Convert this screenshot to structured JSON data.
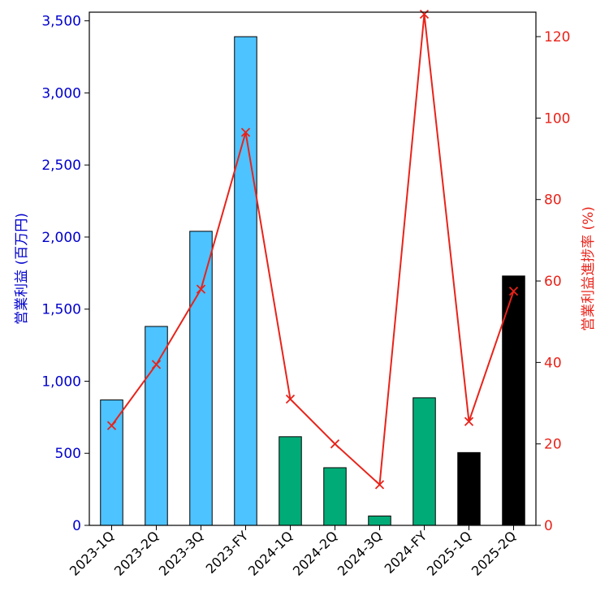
{
  "chart_data": {
    "type": "bar",
    "categories": [
      "2023-1Q",
      "2023-2Q",
      "2023-3Q",
      "2023-FY",
      "2024-1Q",
      "2024-2Q",
      "2024-3Q",
      "2024-FY",
      "2025-1Q",
      "2025-2Q"
    ],
    "series": [
      {
        "axis": "left",
        "kind": "bar",
        "values": [
          870,
          1380,
          2040,
          3390,
          615,
          400,
          65,
          885,
          505,
          1730
        ],
        "colors": [
          "#4dc3ff",
          "#4dc3ff",
          "#4dc3ff",
          "#4dc3ff",
          "#00ab77",
          "#00ab77",
          "#00ab77",
          "#00ab77",
          "#000000",
          "#000000"
        ]
      },
      {
        "axis": "right",
        "kind": "line",
        "marker": "x",
        "color": "#e8231a",
        "values": [
          24.5,
          39.5,
          58,
          96.5,
          31,
          20,
          10,
          125.5,
          25.5,
          57.5
        ]
      }
    ],
    "ylabel": "営業利益 (百万円)",
    "ylabel_right": "営業利益進捗率 (%)",
    "ylim": [
      0,
      3560
    ],
    "ylim_right": [
      0,
      126
    ],
    "yticks": [
      "0",
      "500",
      "1,000",
      "1,500",
      "2,000",
      "2,500",
      "3,000",
      "3,500"
    ],
    "yticks_right": [
      "0",
      "20",
      "40",
      "60",
      "80",
      "100",
      "120"
    ],
    "colors": {
      "left_axis": "#0000cc",
      "right_axis": "#e8231a",
      "bar_blue": "#4dc3ff",
      "bar_green": "#00ab77",
      "bar_black": "#000000"
    },
    "grid": false,
    "legend": "none"
  }
}
